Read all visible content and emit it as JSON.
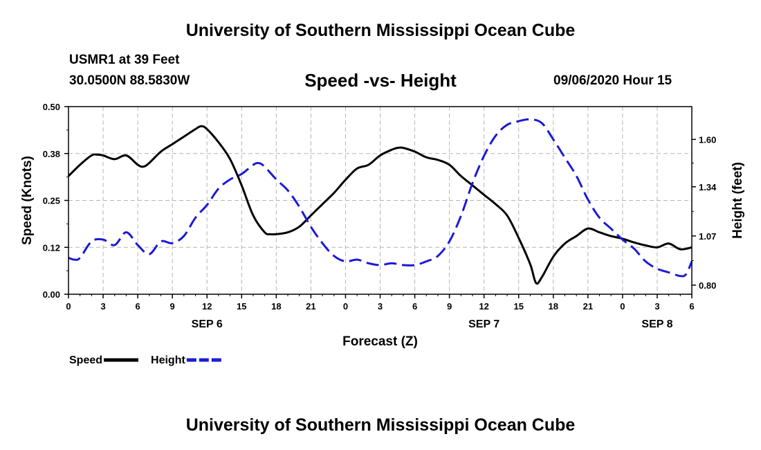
{
  "header": {
    "title": "University of Southern Mississippi Ocean Cube",
    "station": "USMR1 at 39 Feet",
    "coords": "30.0500N 88.5830W",
    "subtitle": "Speed -vs- Height",
    "datetime": "09/06/2020 Hour 15"
  },
  "footer": {
    "title": "University of Southern Mississippi Ocean Cube"
  },
  "chart_data": {
    "type": "line",
    "xlabel": "Forecast (Z)",
    "ylabel_left": "Speed (Knots)",
    "ylabel_right": "Height (feet)",
    "xlim": [
      0,
      54
    ],
    "ylim_left": [
      0,
      0.5
    ],
    "ylim_right": [
      0.75,
      1.78
    ],
    "x_ticks": [
      0,
      3,
      6,
      9,
      12,
      15,
      18,
      21,
      24,
      27,
      30,
      33,
      36,
      39,
      42,
      45,
      48,
      51,
      54
    ],
    "x_tick_labels": [
      "0",
      "3",
      "6",
      "9",
      "12",
      "15",
      "18",
      "21",
      "0",
      "3",
      "6",
      "9",
      "12",
      "15",
      "18",
      "21",
      "0",
      "3",
      "6"
    ],
    "date_labels": [
      {
        "x": 12,
        "label": "SEP 6"
      },
      {
        "x": 36,
        "label": "SEP 7"
      },
      {
        "x": 51,
        "label": "SEP 8"
      }
    ],
    "y_left_ticks": [
      0.0,
      0.125,
      0.25,
      0.375,
      0.5
    ],
    "y_left_tick_labels": [
      "0.00",
      "0.12",
      "0.25",
      "0.38",
      "0.50"
    ],
    "y_right_ticks": [
      0.8,
      1.07,
      1.34,
      1.6
    ],
    "y_right_tick_labels": [
      "0.80",
      "1.07",
      "1.34",
      "1.60"
    ],
    "grid": true,
    "legend": {
      "placement": "bottom-left"
    },
    "series": [
      {
        "name": "Speed",
        "axis": "left",
        "color": "#000000",
        "dash": "solid",
        "x": [
          0,
          1,
          2,
          2.5,
          3,
          4,
          5,
          6,
          6.5,
          7,
          8,
          9,
          10,
          11,
          11.5,
          12,
          13,
          14,
          15,
          16,
          17,
          17.5,
          18,
          19,
          20,
          21,
          22,
          23,
          24,
          25,
          26,
          27,
          28,
          28.5,
          29,
          30,
          31,
          32,
          33,
          34,
          35,
          36,
          37,
          38,
          39,
          40,
          40.5,
          41,
          42,
          43,
          44,
          45,
          46,
          47,
          48,
          49,
          50,
          51,
          52,
          53,
          54
        ],
        "values": [
          0.315,
          0.345,
          0.37,
          0.372,
          0.37,
          0.36,
          0.37,
          0.345,
          0.34,
          0.35,
          0.38,
          0.4,
          0.42,
          0.44,
          0.448,
          0.44,
          0.405,
          0.36,
          0.29,
          0.21,
          0.165,
          0.16,
          0.16,
          0.165,
          0.18,
          0.21,
          0.24,
          0.27,
          0.305,
          0.335,
          0.345,
          0.37,
          0.385,
          0.39,
          0.39,
          0.38,
          0.365,
          0.358,
          0.345,
          0.315,
          0.29,
          0.265,
          0.24,
          0.21,
          0.15,
          0.08,
          0.03,
          0.045,
          0.1,
          0.135,
          0.155,
          0.175,
          0.165,
          0.155,
          0.148,
          0.138,
          0.13,
          0.125,
          0.135,
          0.12,
          0.125
        ]
      },
      {
        "name": "Height",
        "axis": "right",
        "color": "#1a1ad6",
        "dash": "dashed",
        "x": [
          0,
          0.5,
          1,
          2,
          3,
          4,
          5,
          6,
          7,
          8,
          9,
          10,
          11,
          12,
          13,
          14,
          15,
          16,
          16.5,
          17,
          18,
          19,
          20,
          21,
          22,
          23,
          24,
          25,
          26,
          27,
          28,
          29,
          30,
          31,
          32,
          33,
          34,
          35,
          36,
          37,
          38,
          39,
          40,
          41,
          42,
          43,
          44,
          45,
          46,
          47,
          48,
          49,
          50,
          51,
          52,
          53,
          53.5,
          54
        ],
        "values": [
          0.95,
          0.94,
          0.95,
          1.04,
          1.05,
          1.02,
          1.09,
          1.02,
          0.97,
          1.04,
          1.03,
          1.07,
          1.17,
          1.24,
          1.33,
          1.38,
          1.41,
          1.46,
          1.47,
          1.45,
          1.38,
          1.32,
          1.23,
          1.12,
          1.03,
          0.96,
          0.93,
          0.94,
          0.92,
          0.91,
          0.92,
          0.91,
          0.91,
          0.93,
          0.96,
          1.04,
          1.18,
          1.36,
          1.51,
          1.62,
          1.68,
          1.7,
          1.71,
          1.69,
          1.6,
          1.5,
          1.4,
          1.27,
          1.17,
          1.11,
          1.05,
          1.0,
          0.93,
          0.89,
          0.87,
          0.85,
          0.86,
          0.93
        ]
      }
    ]
  }
}
